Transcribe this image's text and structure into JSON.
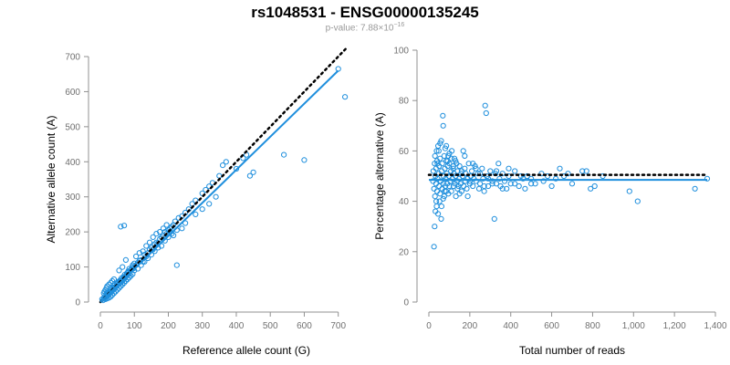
{
  "title": "rs1048531 - ENSG00000135245",
  "subtitle": {
    "prefix": "p-value: 7.88×10",
    "exponent": "−16"
  },
  "colors": {
    "points": "#1f8fdd",
    "fit": "#1f8fdd",
    "expected": "#000000",
    "axis": "#909090"
  },
  "chart_data": [
    {
      "type": "scatter",
      "xlabel": "Reference allele count (G)",
      "ylabel": "Alternative allele count (A)",
      "xlim": [
        0,
        725
      ],
      "ylim": [
        0,
        700
      ],
      "xticks": [
        0,
        100,
        200,
        300,
        400,
        500,
        600,
        700
      ],
      "yticks": [
        0,
        100,
        200,
        300,
        400,
        500,
        600,
        700
      ],
      "fit_line": {
        "x": [
          0,
          700
        ],
        "y": [
          0,
          660
        ]
      },
      "expected_line": {
        "x": [
          0,
          725
        ],
        "y": [
          0,
          725
        ]
      },
      "points": [
        [
          5,
          8
        ],
        [
          8,
          5
        ],
        [
          10,
          12
        ],
        [
          12,
          10
        ],
        [
          15,
          8
        ],
        [
          18,
          15
        ],
        [
          20,
          20
        ],
        [
          22,
          18
        ],
        [
          25,
          22
        ],
        [
          28,
          25
        ],
        [
          30,
          30
        ],
        [
          32,
          28
        ],
        [
          35,
          32
        ],
        [
          38,
          36
        ],
        [
          40,
          40
        ],
        [
          42,
          38
        ],
        [
          45,
          44
        ],
        [
          48,
          45
        ],
        [
          50,
          48
        ],
        [
          52,
          55
        ],
        [
          55,
          52
        ],
        [
          58,
          58
        ],
        [
          60,
          55
        ],
        [
          62,
          62
        ],
        [
          65,
          60
        ],
        [
          68,
          65
        ],
        [
          70,
          70
        ],
        [
          72,
          68
        ],
        [
          75,
          72
        ],
        [
          78,
          78
        ],
        [
          80,
          82
        ],
        [
          82,
          85
        ],
        [
          85,
          80
        ],
        [
          88,
          90
        ],
        [
          90,
          92
        ],
        [
          92,
          95
        ],
        [
          95,
          100
        ],
        [
          98,
          96
        ],
        [
          100,
          110
        ],
        [
          105,
          105
        ],
        [
          110,
          112
        ],
        [
          115,
          118
        ],
        [
          120,
          120
        ],
        [
          125,
          115
        ],
        [
          130,
          135
        ],
        [
          135,
          130
        ],
        [
          140,
          140
        ],
        [
          145,
          150
        ],
        [
          150,
          155
        ],
        [
          155,
          150
        ],
        [
          160,
          165
        ],
        [
          165,
          170
        ],
        [
          170,
          168
        ],
        [
          175,
          180
        ],
        [
          180,
          185
        ],
        [
          185,
          190
        ],
        [
          190,
          200
        ],
        [
          195,
          195
        ],
        [
          200,
          205
        ],
        [
          205,
          210
        ],
        [
          210,
          215
        ],
        [
          215,
          220
        ],
        [
          220,
          230
        ],
        [
          230,
          240
        ],
        [
          240,
          245
        ],
        [
          250,
          255
        ],
        [
          260,
          265
        ],
        [
          270,
          280
        ],
        [
          280,
          290
        ],
        [
          300,
          310
        ],
        [
          310,
          320
        ],
        [
          320,
          330
        ],
        [
          330,
          340
        ],
        [
          350,
          360
        ],
        [
          360,
          390
        ],
        [
          370,
          400
        ],
        [
          400,
          380
        ],
        [
          420,
          410
        ],
        [
          430,
          420
        ],
        [
          440,
          360
        ],
        [
          450,
          370
        ],
        [
          540,
          420
        ],
        [
          600,
          405
        ],
        [
          700,
          665
        ],
        [
          720,
          585
        ],
        [
          10,
          25
        ],
        [
          12,
          30
        ],
        [
          15,
          35
        ],
        [
          18,
          40
        ],
        [
          20,
          10
        ],
        [
          25,
          12
        ],
        [
          30,
          15
        ],
        [
          35,
          20
        ],
        [
          40,
          25
        ],
        [
          45,
          30
        ],
        [
          50,
          35
        ],
        [
          55,
          40
        ],
        [
          60,
          45
        ],
        [
          65,
          50
        ],
        [
          70,
          55
        ],
        [
          75,
          60
        ],
        [
          80,
          65
        ],
        [
          85,
          70
        ],
        [
          90,
          75
        ],
        [
          95,
          80
        ],
        [
          100,
          90
        ],
        [
          110,
          95
        ],
        [
          120,
          105
        ],
        [
          130,
          115
        ],
        [
          140,
          125
        ],
        [
          150,
          135
        ],
        [
          160,
          145
        ],
        [
          170,
          155
        ],
        [
          180,
          160
        ],
        [
          190,
          175
        ],
        [
          200,
          185
        ],
        [
          210,
          195
        ],
        [
          225,
          105
        ],
        [
          240,
          210
        ],
        [
          250,
          225
        ],
        [
          280,
          250
        ],
        [
          300,
          265
        ],
        [
          320,
          280
        ],
        [
          340,
          300
        ],
        [
          60,
          215
        ],
        [
          70,
          218
        ],
        [
          55,
          90
        ],
        [
          65,
          100
        ],
        [
          75,
          120
        ],
        [
          85,
          95
        ],
        [
          95,
          105
        ],
        [
          105,
          130
        ],
        [
          115,
          140
        ],
        [
          125,
          145
        ],
        [
          135,
          160
        ],
        [
          145,
          170
        ],
        [
          155,
          185
        ],
        [
          165,
          195
        ],
        [
          175,
          200
        ],
        [
          185,
          210
        ],
        [
          195,
          220
        ],
        [
          205,
          200
        ],
        [
          215,
          190
        ],
        [
          225,
          205
        ],
        [
          20,
          45
        ],
        [
          25,
          50
        ],
        [
          30,
          55
        ],
        [
          35,
          60
        ],
        [
          40,
          65
        ],
        [
          15,
          20
        ],
        [
          18,
          25
        ],
        [
          22,
          28
        ],
        [
          28,
          33
        ],
        [
          32,
          38
        ],
        [
          38,
          42
        ],
        [
          42,
          48
        ],
        [
          48,
          52
        ],
        [
          52,
          58
        ],
        [
          58,
          62
        ],
        [
          62,
          68
        ],
        [
          68,
          72
        ],
        [
          72,
          78
        ],
        [
          78,
          82
        ],
        [
          82,
          88
        ]
      ]
    },
    {
      "type": "scatter",
      "xlabel": "Total number of reads",
      "ylabel": "Percentage alternative (A)",
      "xlim": [
        0,
        1400
      ],
      "ylim": [
        0,
        100
      ],
      "xticks": [
        0,
        200,
        400,
        600,
        800,
        1000,
        1200,
        1400
      ],
      "xticklabels": [
        "0",
        "200",
        "400",
        "600",
        "800",
        "1,000",
        "1,200",
        "1,400"
      ],
      "yticks": [
        0,
        20,
        40,
        60,
        80,
        100
      ],
      "fit_line": {
        "x": [
          0,
          1360
        ],
        "y": [
          48.5,
          48.5
        ]
      },
      "expected_line": {
        "x": [
          0,
          1360
        ],
        "y": [
          50.5,
          50.5
        ]
      },
      "points": [
        [
          20,
          48
        ],
        [
          22,
          52
        ],
        [
          25,
          45
        ],
        [
          28,
          55
        ],
        [
          30,
          58
        ],
        [
          30,
          42
        ],
        [
          32,
          50
        ],
        [
          35,
          47
        ],
        [
          35,
          53
        ],
        [
          38,
          38
        ],
        [
          38,
          60
        ],
        [
          40,
          44
        ],
        [
          40,
          56
        ],
        [
          42,
          49
        ],
        [
          45,
          62
        ],
        [
          45,
          35
        ],
        [
          48,
          51
        ],
        [
          50,
          46
        ],
        [
          50,
          54
        ],
        [
          52,
          40
        ],
        [
          55,
          57
        ],
        [
          55,
          43
        ],
        [
          58,
          48
        ],
        [
          60,
          64
        ],
        [
          60,
          33
        ],
        [
          62,
          52
        ],
        [
          65,
          45
        ],
        [
          65,
          55
        ],
        [
          68,
          74
        ],
        [
          70,
          70
        ],
        [
          70,
          47
        ],
        [
          72,
          50
        ],
        [
          75,
          42
        ],
        [
          75,
          58
        ],
        [
          78,
          53
        ],
        [
          80,
          46
        ],
        [
          80,
          61
        ],
        [
          82,
          49
        ],
        [
          85,
          44
        ],
        [
          85,
          56
        ],
        [
          88,
          51
        ],
        [
          90,
          47
        ],
        [
          92,
          54
        ],
        [
          95,
          43
        ],
        [
          95,
          58
        ],
        [
          98,
          50
        ],
        [
          100,
          46
        ],
        [
          100,
          55
        ],
        [
          105,
          48
        ],
        [
          108,
          52
        ],
        [
          110,
          44
        ],
        [
          112,
          60
        ],
        [
          115,
          49
        ],
        [
          118,
          53
        ],
        [
          120,
          46
        ],
        [
          122,
          51
        ],
        [
          125,
          57
        ],
        [
          128,
          47
        ],
        [
          130,
          50
        ],
        [
          132,
          42
        ],
        [
          135,
          55
        ],
        [
          138,
          48
        ],
        [
          140,
          52
        ],
        [
          145,
          46
        ],
        [
          148,
          49
        ],
        [
          150,
          54
        ],
        [
          155,
          47
        ],
        [
          158,
          51
        ],
        [
          160,
          44
        ],
        [
          165,
          50
        ],
        [
          168,
          60
        ],
        [
          170,
          46
        ],
        [
          175,
          53
        ],
        [
          178,
          48
        ],
        [
          180,
          51
        ],
        [
          185,
          45
        ],
        [
          190,
          49
        ],
        [
          195,
          55
        ],
        [
          200,
          47
        ],
        [
          205,
          50
        ],
        [
          210,
          52
        ],
        [
          215,
          46
        ],
        [
          220,
          49
        ],
        [
          225,
          54
        ],
        [
          230,
          48
        ],
        [
          240,
          51
        ],
        [
          245,
          45
        ],
        [
          250,
          47
        ],
        [
          260,
          53
        ],
        [
          265,
          49
        ],
        [
          270,
          44
        ],
        [
          275,
          78
        ],
        [
          280,
          75
        ],
        [
          285,
          50
        ],
        [
          290,
          46
        ],
        [
          300,
          52
        ],
        [
          310,
          48
        ],
        [
          320,
          33
        ],
        [
          325,
          51
        ],
        [
          330,
          47
        ],
        [
          340,
          55
        ],
        [
          345,
          49
        ],
        [
          350,
          46
        ],
        [
          360,
          51
        ],
        [
          370,
          48
        ],
        [
          380,
          45
        ],
        [
          390,
          50
        ],
        [
          400,
          47
        ],
        [
          420,
          52
        ],
        [
          440,
          46
        ],
        [
          460,
          49
        ],
        [
          480,
          50
        ],
        [
          500,
          47
        ],
        [
          550,
          51
        ],
        [
          600,
          46
        ],
        [
          640,
          53
        ],
        [
          660,
          50
        ],
        [
          700,
          47
        ],
        [
          750,
          52
        ],
        [
          770,
          52
        ],
        [
          790,
          45
        ],
        [
          810,
          46
        ],
        [
          850,
          50
        ],
        [
          980,
          44
        ],
        [
          1020,
          40
        ],
        [
          1300,
          45
        ],
        [
          1360,
          49
        ],
        [
          25,
          22
        ],
        [
          28,
          30
        ],
        [
          32,
          36
        ],
        [
          36,
          40
        ],
        [
          42,
          55
        ],
        [
          48,
          60
        ],
        [
          55,
          63
        ],
        [
          62,
          38
        ],
        [
          70,
          41
        ],
        [
          78,
          44
        ],
        [
          85,
          62
        ],
        [
          92,
          56
        ],
        [
          100,
          59
        ],
        [
          110,
          57
        ],
        [
          120,
          54
        ],
        [
          130,
          56
        ],
        [
          140,
          45
        ],
        [
          150,
          43
        ],
        [
          160,
          52
        ],
        [
          175,
          58
        ],
        [
          190,
          42
        ],
        [
          200,
          48
        ],
        [
          215,
          55
        ],
        [
          230,
          53
        ],
        [
          250,
          51
        ],
        [
          270,
          46
        ],
        [
          290,
          49
        ],
        [
          310,
          47
        ],
        [
          330,
          52
        ],
        [
          360,
          45
        ],
        [
          390,
          53
        ],
        [
          420,
          47
        ],
        [
          450,
          50
        ],
        [
          470,
          45
        ],
        [
          500,
          49
        ],
        [
          520,
          47
        ],
        [
          560,
          48
        ],
        [
          580,
          50
        ],
        [
          620,
          49
        ],
        [
          680,
          51
        ]
      ]
    }
  ]
}
